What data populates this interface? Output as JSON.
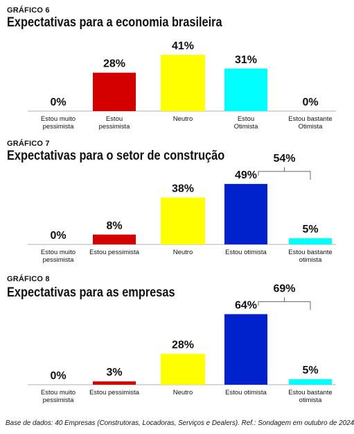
{
  "charts": [
    {
      "kicker": "GRÁFICO 6",
      "title": "Expectativas para a economia brasileira",
      "chart_data": {
        "type": "bar",
        "categories": [
          [
            "Estou muito",
            "pessimista"
          ],
          [
            "Estou",
            "pessimista"
          ],
          [
            "Neutro"
          ],
          [
            "Estou",
            "Otimista"
          ],
          [
            "Estou  bastante",
            "Otimista"
          ]
        ],
        "values": [
          0,
          28,
          41,
          31,
          0
        ],
        "value_labels": [
          "0%",
          "28%",
          "41%",
          "31%",
          "0%"
        ],
        "colors": [
          "#d40000",
          "#d40000",
          "#ffff00",
          "#00ffff",
          "#00ffff"
        ],
        "ylim": [
          0,
          45
        ]
      }
    },
    {
      "kicker": "GRÁFICO 7",
      "title": "Expectativas para o setor de construção",
      "chart_data": {
        "type": "bar",
        "categories": [
          [
            "Estou muito",
            "pessimista"
          ],
          [
            "Estou pessimista"
          ],
          [
            "Neutro"
          ],
          [
            "Estou otimista"
          ],
          [
            "Estou bastante",
            "otimista"
          ]
        ],
        "values": [
          0,
          8,
          38,
          49,
          5
        ],
        "value_labels": [
          "0%",
          "8%",
          "38%",
          "49%",
          "5%"
        ],
        "colors": [
          "#d40000",
          "#d40000",
          "#ffff00",
          "#0022cc",
          "#00ffff"
        ],
        "ylim": [
          0,
          55
        ],
        "bracket": {
          "label": "54%",
          "from": 3,
          "to": 4
        }
      }
    },
    {
      "kicker": "GRÁFICO 8",
      "title": "Expectativas para as empresas",
      "chart_data": {
        "type": "bar",
        "categories": [
          [
            "Estou muito",
            "pessimista"
          ],
          [
            "Estou pessimista"
          ],
          [
            "Neutro"
          ],
          [
            "Estou otimista"
          ],
          [
            "Estou bastante",
            "otimista"
          ]
        ],
        "values": [
          0,
          3,
          28,
          64,
          5
        ],
        "value_labels": [
          "0%",
          "3%",
          "28%",
          "64%",
          "5%"
        ],
        "colors": [
          "#d40000",
          "#d40000",
          "#ffff00",
          "#0022cc",
          "#00ffff"
        ],
        "ylim": [
          0,
          70
        ],
        "bracket": {
          "label": "69%",
          "from": 3,
          "to": 4
        }
      }
    }
  ],
  "footnote": "Base de dados: 40 Empresas (Construtoras, Locadoras, Serviços e Dealers). Ref.: Sondagem em outubro de 2024"
}
